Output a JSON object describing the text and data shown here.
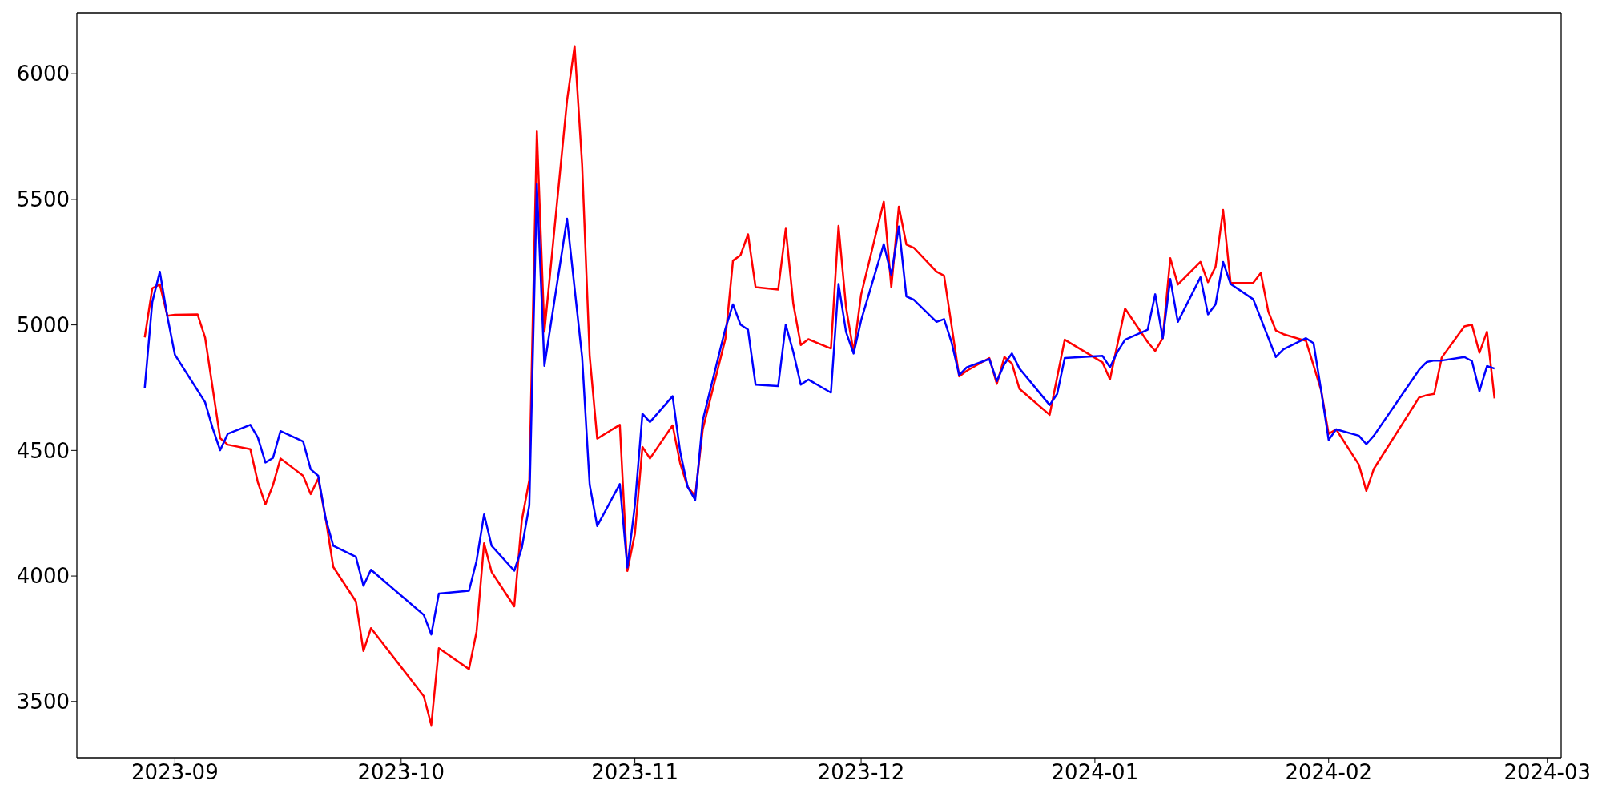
{
  "chart_data": {
    "type": "line",
    "xlim": [
      "2023-08-19",
      "2024-03-02T20:00"
    ],
    "xticks": [
      "2023-09",
      "2023-10",
      "2023-11",
      "2023-12",
      "2024-01",
      "2024-02",
      "2024-03"
    ],
    "ylim": [
      3276,
      6243
    ],
    "yticks": [
      3500,
      4000,
      4500,
      5000,
      5500,
      6000
    ],
    "series": [
      {
        "color": "#ff0000",
        "x": [
          "2023-08-28",
          "2023-08-29",
          "2023-08-30",
          "2023-08-31",
          "2023-09-01",
          "2023-09-04",
          "2023-09-05",
          "2023-09-07",
          "2023-09-08",
          "2023-09-11",
          "2023-09-12",
          "2023-09-13",
          "2023-09-14",
          "2023-09-15",
          "2023-09-18",
          "2023-09-19",
          "2023-09-20",
          "2023-09-21",
          "2023-09-22",
          "2023-09-25",
          "2023-09-26",
          "2023-09-27",
          "2023-10-04",
          "2023-10-05",
          "2023-10-06",
          "2023-10-10",
          "2023-10-11",
          "2023-10-12",
          "2023-10-13",
          "2023-10-16",
          "2023-10-17",
          "2023-10-18",
          "2023-10-19",
          "2023-10-20",
          "2023-10-23",
          "2023-10-24",
          "2023-10-25",
          "2023-10-26",
          "2023-10-27",
          "2023-10-30",
          "2023-10-31",
          "2023-11-01",
          "2023-11-02",
          "2023-11-03",
          "2023-11-06",
          "2023-11-07",
          "2023-11-08",
          "2023-11-09",
          "2023-11-10",
          "2023-11-13",
          "2023-11-14",
          "2023-11-15",
          "2023-11-16",
          "2023-11-17",
          "2023-11-20",
          "2023-11-21",
          "2023-11-22",
          "2023-11-23",
          "2023-11-24",
          "2023-11-27",
          "2023-11-28",
          "2023-11-29",
          "2023-11-30",
          "2023-12-01",
          "2023-12-04",
          "2023-12-05",
          "2023-12-06",
          "2023-12-07",
          "2023-12-08",
          "2023-12-11",
          "2023-12-12",
          "2023-12-13",
          "2023-12-14",
          "2023-12-15",
          "2023-12-18",
          "2023-12-19",
          "2023-12-20",
          "2023-12-21",
          "2023-12-22",
          "2023-12-26",
          "2023-12-28",
          "2024-01-02",
          "2024-01-03",
          "2024-01-05",
          "2024-01-08",
          "2024-01-09",
          "2024-01-10",
          "2024-01-11",
          "2024-01-12",
          "2024-01-15",
          "2024-01-16",
          "2024-01-17",
          "2024-01-18",
          "2024-01-19",
          "2024-01-22",
          "2024-01-23",
          "2024-01-24",
          "2024-01-25",
          "2024-01-26",
          "2024-01-29",
          "2024-01-31",
          "2024-02-01",
          "2024-02-02",
          "2024-02-05",
          "2024-02-06",
          "2024-02-07",
          "2024-02-13",
          "2024-02-14",
          "2024-02-15",
          "2024-02-16",
          "2024-02-19",
          "2024-02-20",
          "2024-02-21",
          "2024-02-22",
          "2024-02-23"
        ],
        "values": [
          4950,
          5146,
          5161,
          5036,
          5040,
          5042,
          4950,
          4549,
          4523,
          4505,
          4373,
          4285,
          4362,
          4468,
          4399,
          4326,
          4388,
          4227,
          4036,
          3899,
          3701,
          3792,
          3521,
          3406,
          3712,
          3629,
          3778,
          4130,
          4016,
          3879,
          4221,
          4382,
          5773,
          4973,
          5894,
          6110,
          5637,
          4877,
          4547,
          4602,
          4020,
          4168,
          4514,
          4468,
          4600,
          4450,
          4355,
          4318,
          4584,
          4945,
          5256,
          5278,
          5361,
          5150,
          5141,
          5383,
          5084,
          4920,
          4943,
          4906,
          5394,
          5070,
          4892,
          5121,
          5491,
          5150,
          5471,
          5320,
          5307,
          5212,
          5196,
          4996,
          4795,
          4817,
          4868,
          4765,
          4872,
          4846,
          4745,
          4642,
          4941,
          4851,
          4783,
          5065,
          4932,
          4896,
          4947,
          5266,
          5161,
          5251,
          5170,
          5232,
          5458,
          5167,
          5168,
          5207,
          5053,
          4978,
          4963,
          4936,
          4740,
          4566,
          4584,
          4444,
          4339,
          4427,
          4711,
          4720,
          4725,
          4870,
          4994,
          5001,
          4889,
          4973,
          4707
        ]
      },
      {
        "color": "#0000ff",
        "x": [
          "2023-08-28",
          "2023-08-29",
          "2023-08-30",
          "2023-08-31",
          "2023-09-01",
          "2023-09-05",
          "2023-09-06",
          "2023-09-07",
          "2023-09-08",
          "2023-09-11",
          "2023-09-12",
          "2023-09-13",
          "2023-09-14",
          "2023-09-15",
          "2023-09-18",
          "2023-09-19",
          "2023-09-20",
          "2023-09-21",
          "2023-09-22",
          "2023-09-25",
          "2023-09-26",
          "2023-09-27",
          "2023-10-04",
          "2023-10-05",
          "2023-10-06",
          "2023-10-10",
          "2023-10-11",
          "2023-10-12",
          "2023-10-13",
          "2023-10-16",
          "2023-10-17",
          "2023-10-18",
          "2023-10-19",
          "2023-10-20",
          "2023-10-23",
          "2023-10-25",
          "2023-10-26",
          "2023-10-27",
          "2023-10-30",
          "2023-10-31",
          "2023-11-01",
          "2023-11-02",
          "2023-11-03",
          "2023-11-06",
          "2023-11-07",
          "2023-11-08",
          "2023-11-09",
          "2023-11-10",
          "2023-11-13",
          "2023-11-14",
          "2023-11-15",
          "2023-11-16",
          "2023-11-17",
          "2023-11-20",
          "2023-11-21",
          "2023-11-22",
          "2023-11-23",
          "2023-11-24",
          "2023-11-27",
          "2023-11-28",
          "2023-11-29",
          "2023-11-30",
          "2023-12-01",
          "2023-12-04",
          "2023-12-05",
          "2023-12-06",
          "2023-12-07",
          "2023-12-08",
          "2023-12-11",
          "2023-12-12",
          "2023-12-13",
          "2023-12-14",
          "2023-12-15",
          "2023-12-18",
          "2023-12-19",
          "2023-12-20",
          "2023-12-21",
          "2023-12-22",
          "2023-12-26",
          "2023-12-27",
          "2023-12-28",
          "2024-01-02",
          "2024-01-03",
          "2024-01-04",
          "2024-01-05",
          "2024-01-08",
          "2024-01-09",
          "2024-01-10",
          "2024-01-11",
          "2024-01-12",
          "2024-01-15",
          "2024-01-16",
          "2024-01-17",
          "2024-01-18",
          "2024-01-19",
          "2024-01-22",
          "2024-01-25",
          "2024-01-26",
          "2024-01-29",
          "2024-01-30",
          "2024-01-31",
          "2024-02-01",
          "2024-02-02",
          "2024-02-05",
          "2024-02-06",
          "2024-02-07",
          "2024-02-13",
          "2024-02-14",
          "2024-02-15",
          "2024-02-16",
          "2024-02-19",
          "2024-02-20",
          "2024-02-21",
          "2024-02-22",
          "2024-02-23"
        ],
        "values": [
          4749,
          5091,
          5212,
          5033,
          4881,
          4692,
          4589,
          4501,
          4566,
          4602,
          4551,
          4452,
          4470,
          4577,
          4536,
          4425,
          4399,
          4227,
          4120,
          4076,
          3961,
          4025,
          3845,
          3767,
          3930,
          3941,
          4060,
          4245,
          4120,
          4021,
          4111,
          4282,
          5561,
          4837,
          5423,
          4871,
          4364,
          4199,
          4366,
          4034,
          4282,
          4646,
          4613,
          4716,
          4496,
          4355,
          4303,
          4620,
          4985,
          5082,
          5001,
          4981,
          4762,
          4756,
          5001,
          4892,
          4762,
          4782,
          4730,
          5163,
          4972,
          4886,
          5018,
          5322,
          5199,
          5392,
          5113,
          5100,
          5012,
          5023,
          4930,
          4800,
          4831,
          4864,
          4776,
          4844,
          4886,
          4826,
          4681,
          4725,
          4868,
          4877,
          4831,
          4893,
          4941,
          4981,
          5122,
          4947,
          5183,
          5012,
          5190,
          5042,
          5082,
          5251,
          5163,
          5102,
          4872,
          4903,
          4947,
          4927,
          4740,
          4542,
          4584,
          4559,
          4525,
          4559,
          4821,
          4852,
          4858,
          4858,
          4872,
          4856,
          4736,
          4836,
          4826
        ]
      }
    ]
  }
}
